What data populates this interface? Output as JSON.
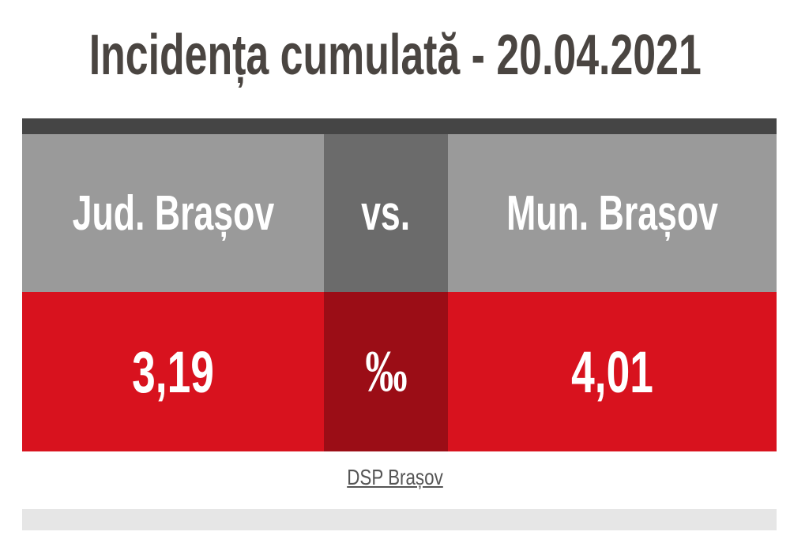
{
  "header": {
    "title": "Incidența cumulată - 20.04.2021"
  },
  "comparison": {
    "left_label": "Jud. Brașov",
    "middle_label": "vs.",
    "right_label": "Mun. Brașov",
    "left_value": "3,19",
    "unit": "‰",
    "right_value": "4,01"
  },
  "source": "DSP Brașov"
}
